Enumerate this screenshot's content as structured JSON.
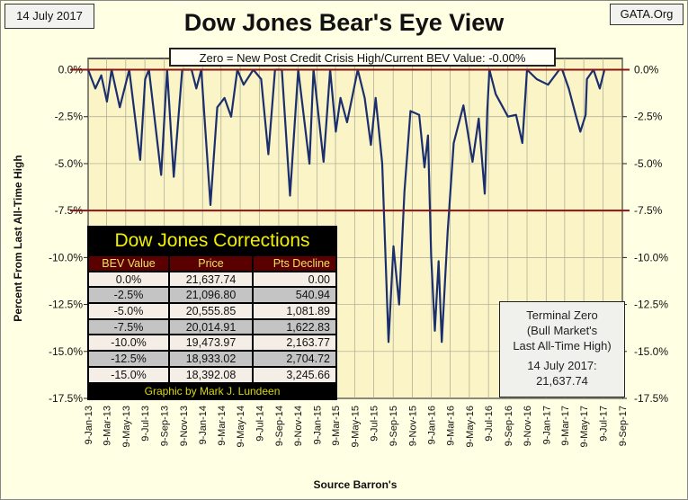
{
  "header": {
    "date": "14 July 2017",
    "source_site": "GATA.Org",
    "subtitle": "Zero = New Post Credit Crisis High/Current BEV Value:  -0.00%"
  },
  "chart_data": {
    "type": "line",
    "title": "Dow Jones Bear's Eye View",
    "ylabel": "Percent From Last All-Time High",
    "xlabel": "Source Barron's",
    "ylim": [
      -17.5,
      0.6
    ],
    "xlim": [
      "2013-01-09",
      "2017-09-09"
    ],
    "grid": true,
    "y_ticks": [
      "0.0%",
      "-2.5%",
      "-5.0%",
      "-7.5%",
      "-10.0%",
      "-12.5%",
      "-15.0%",
      "-17.5%"
    ],
    "y_tick_values": [
      0,
      -2.5,
      -5,
      -7.5,
      -10,
      -12.5,
      -15,
      -17.5
    ],
    "x_ticks": [
      "9-Jan-13",
      "9-Mar-13",
      "9-May-13",
      "9-Jul-13",
      "9-Sep-13",
      "9-Nov-13",
      "9-Jan-14",
      "9-Mar-14",
      "9-May-14",
      "9-Jul-14",
      "9-Sep-14",
      "9-Nov-14",
      "9-Jan-15",
      "9-Mar-15",
      "9-May-15",
      "9-Jul-15",
      "9-Sep-15",
      "9-Nov-15",
      "9-Jan-16",
      "9-Mar-16",
      "9-May-16",
      "9-Jul-16",
      "9-Sep-16",
      "9-Nov-16",
      "9-Jan-17",
      "9-Mar-17",
      "9-May-17",
      "9-Jul-17",
      "9-Sep-17"
    ],
    "reference_lines": [
      0,
      -7.5
    ],
    "colors": {
      "line": "#1B2F6E",
      "reference": "#8B1414",
      "plot_bg": "#FBF4C6",
      "grid": "#A8A890"
    },
    "series": [
      {
        "points": [
          [
            "2013-01-09",
            0.0
          ],
          [
            "2013-02-01",
            -1.0
          ],
          [
            "2013-02-20",
            -0.3
          ],
          [
            "2013-03-10",
            -1.7
          ],
          [
            "2013-03-25",
            0.0
          ],
          [
            "2013-04-20",
            -2.0
          ],
          [
            "2013-05-20",
            0.0
          ],
          [
            "2013-06-24",
            -4.8
          ],
          [
            "2013-07-10",
            -0.5
          ],
          [
            "2013-07-22",
            0.0
          ],
          [
            "2013-08-30",
            -5.6
          ],
          [
            "2013-09-18",
            0.0
          ],
          [
            "2013-10-09",
            -5.7
          ],
          [
            "2013-11-05",
            0.0
          ],
          [
            "2013-12-05",
            0.0
          ],
          [
            "2013-12-20",
            -1.0
          ],
          [
            "2014-01-05",
            0.0
          ],
          [
            "2014-02-03",
            -7.2
          ],
          [
            "2014-02-25",
            -2.0
          ],
          [
            "2014-03-20",
            -1.5
          ],
          [
            "2014-04-10",
            -2.5
          ],
          [
            "2014-04-30",
            0.0
          ],
          [
            "2014-05-20",
            -0.8
          ],
          [
            "2014-06-20",
            0.0
          ],
          [
            "2014-07-15",
            -0.5
          ],
          [
            "2014-08-07",
            -4.5
          ],
          [
            "2014-08-28",
            0.0
          ],
          [
            "2014-09-19",
            0.0
          ],
          [
            "2014-10-15",
            -6.7
          ],
          [
            "2014-11-10",
            0.0
          ],
          [
            "2014-12-16",
            -5.0
          ],
          [
            "2014-12-29",
            0.0
          ],
          [
            "2015-01-30",
            -4.9
          ],
          [
            "2015-02-20",
            0.0
          ],
          [
            "2015-03-10",
            -3.3
          ],
          [
            "2015-03-25",
            -1.5
          ],
          [
            "2015-04-15",
            -2.8
          ],
          [
            "2015-05-19",
            0.0
          ],
          [
            "2015-06-10",
            -1.5
          ],
          [
            "2015-06-30",
            -4.0
          ],
          [
            "2015-07-15",
            -1.5
          ],
          [
            "2015-08-05",
            -5.0
          ],
          [
            "2015-08-25",
            -14.5
          ],
          [
            "2015-09-10",
            -9.4
          ],
          [
            "2015-09-28",
            -12.5
          ],
          [
            "2015-10-15",
            -6.5
          ],
          [
            "2015-11-03",
            -2.2
          ],
          [
            "2015-12-01",
            -2.4
          ],
          [
            "2015-12-18",
            -5.2
          ],
          [
            "2015-12-29",
            -3.5
          ],
          [
            "2016-01-08",
            -9.9
          ],
          [
            "2016-01-20",
            -13.9
          ],
          [
            "2016-02-01",
            -10.2
          ],
          [
            "2016-02-11",
            -14.5
          ],
          [
            "2016-03-01",
            -8.6
          ],
          [
            "2016-03-20",
            -3.9
          ],
          [
            "2016-04-20",
            -1.9
          ],
          [
            "2016-05-19",
            -4.9
          ],
          [
            "2016-06-08",
            -2.6
          ],
          [
            "2016-06-27",
            -6.6
          ],
          [
            "2016-07-05",
            -2.2
          ],
          [
            "2016-07-12",
            0.0
          ],
          [
            "2016-08-01",
            -1.3
          ],
          [
            "2016-09-09",
            -2.5
          ],
          [
            "2016-10-05",
            -2.4
          ],
          [
            "2016-10-25",
            -3.9
          ],
          [
            "2016-11-09",
            0.0
          ],
          [
            "2016-12-10",
            -0.5
          ],
          [
            "2017-01-15",
            -0.8
          ],
          [
            "2017-02-20",
            0.0
          ],
          [
            "2017-03-01",
            0.0
          ],
          [
            "2017-03-22",
            -1.0
          ],
          [
            "2017-04-13",
            -2.4
          ],
          [
            "2017-04-28",
            -3.3
          ],
          [
            "2017-05-15",
            -2.4
          ],
          [
            "2017-05-19",
            -0.5
          ],
          [
            "2017-06-09",
            0.0
          ],
          [
            "2017-06-29",
            -1.0
          ],
          [
            "2017-07-14",
            0.0
          ]
        ]
      }
    ]
  },
  "corrections_table": {
    "title": "Dow Jones Corrections",
    "headers": [
      "BEV Value",
      "Price",
      "Pts Decline"
    ],
    "rows": [
      [
        "0.0%",
        "21,637.74",
        "0.00"
      ],
      [
        "-2.5%",
        "21,096.80",
        "540.94"
      ],
      [
        "-5.0%",
        "20,555.85",
        "1,081.89"
      ],
      [
        "-7.5%",
        "20,014.91",
        "1,622.83"
      ],
      [
        "-10.0%",
        "19,473.97",
        "2,163.77"
      ],
      [
        "-12.5%",
        "18,933.02",
        "2,704.72"
      ],
      [
        "-15.0%",
        "18,392.08",
        "3,245.66"
      ]
    ],
    "footer": "Graphic by Mark J. Lundeen"
  },
  "terminal_zero": {
    "line1": "Terminal Zero",
    "line2": "(Bull Market's",
    "line3": "Last All-Time High)",
    "date": "14 July 2017:",
    "value": "21,637.74"
  }
}
